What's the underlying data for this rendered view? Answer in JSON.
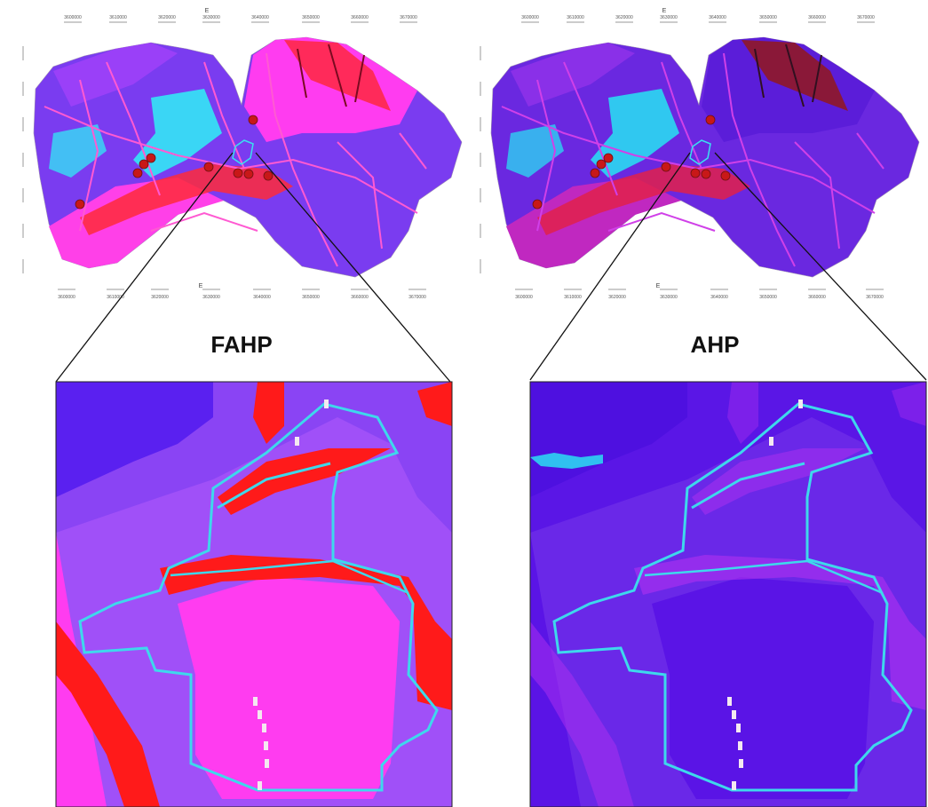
{
  "panels": [
    {
      "title": "FAHP",
      "axis_label_top": "E",
      "axis_label_bottom": "E",
      "top_ticks": [
        "3600000",
        "3610000",
        "3620000",
        "3630000",
        "3640000",
        "3650000",
        "3660000",
        "3670000"
      ],
      "bottom_ticks": [
        "3600000",
        "3610000",
        "3620000",
        "3630000",
        "3640000",
        "3650000",
        "3660000",
        "3670000"
      ]
    },
    {
      "title": "AHP",
      "axis_label_top": "E",
      "axis_label_bottom": "E",
      "top_ticks": [
        "3600000",
        "3610000",
        "3620000",
        "3630000",
        "3640000",
        "3650000",
        "3660000",
        "3670000"
      ],
      "bottom_ticks": [
        "3600000",
        "3610000",
        "3620000",
        "3630000",
        "3640000",
        "3650000",
        "3660000",
        "3670000"
      ]
    }
  ]
}
